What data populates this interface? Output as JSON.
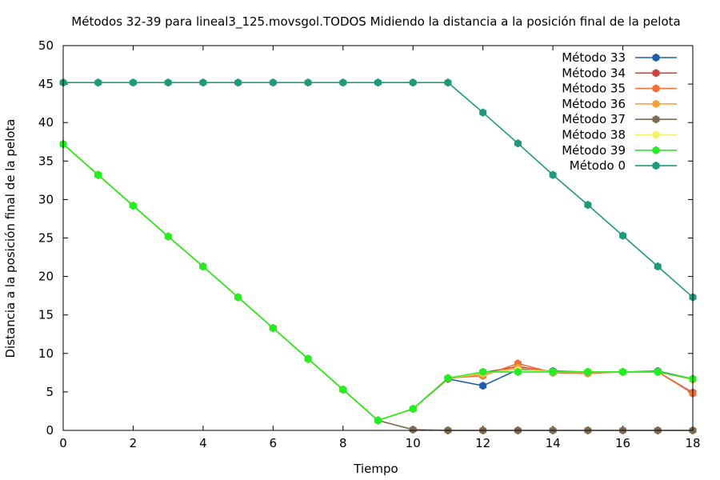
{
  "chart_data": {
    "type": "line",
    "title": "Métodos 32-39 para lineal3_125.movsgol.TODOS Midiendo la distancia a la posición final de la pelota",
    "xlabel": "Tiempo",
    "ylabel": "Distancia a la posición final de la pelota",
    "xlim": [
      0,
      18
    ],
    "ylim": [
      0,
      50
    ],
    "xticks": [
      0,
      2,
      4,
      6,
      8,
      10,
      12,
      14,
      16,
      18
    ],
    "yticks": [
      0,
      5,
      10,
      15,
      20,
      25,
      30,
      35,
      40,
      45,
      50
    ],
    "grid": false,
    "legend_position": "top-right",
    "x": [
      0,
      1,
      2,
      3,
      4,
      5,
      6,
      7,
      8,
      9,
      10,
      11,
      12,
      13,
      14,
      15,
      16,
      17,
      18
    ],
    "series": [
      {
        "name": "Método 33",
        "color": "#1f5fa8",
        "values": [
          37.2,
          33.2,
          29.2,
          25.2,
          21.3,
          17.3,
          13.3,
          9.3,
          5.3,
          1.3,
          2.8,
          6.7,
          5.8,
          7.9,
          7.7,
          7.6,
          7.6,
          7.7,
          6.7
        ]
      },
      {
        "name": "Método 34",
        "color": "#c8463a",
        "values": [
          37.2,
          33.2,
          29.2,
          25.2,
          21.3,
          17.3,
          13.3,
          9.3,
          5.3,
          1.3,
          2.8,
          6.7,
          7.5,
          8.3,
          7.6,
          7.5,
          7.6,
          7.6,
          4.9
        ]
      },
      {
        "name": "Método 35",
        "color": "#f0703a",
        "values": [
          37.2,
          33.2,
          29.2,
          25.2,
          21.3,
          17.3,
          13.3,
          9.3,
          5.3,
          1.3,
          2.8,
          6.8,
          7.1,
          8.7,
          7.5,
          7.4,
          7.6,
          7.6,
          4.8
        ]
      },
      {
        "name": "Método 36",
        "color": "#f8a040",
        "values": [
          37.2,
          33.2,
          29.2,
          25.2,
          21.3,
          17.3,
          13.3,
          9.3,
          5.3,
          1.3,
          2.8,
          6.8,
          7.3,
          8.1,
          7.6,
          7.5,
          7.6,
          7.6,
          6.6
        ]
      },
      {
        "name": "Método 37",
        "color": "#7d6b52",
        "values": [
          37.2,
          33.2,
          29.2,
          25.2,
          21.3,
          17.3,
          13.3,
          9.3,
          5.3,
          1.3,
          0.1,
          0.0,
          0.0,
          0.0,
          0.0,
          0.0,
          0.0,
          0.0,
          0.0
        ]
      },
      {
        "name": "Método 38",
        "color": "#f5f06a",
        "values": [
          37.2,
          33.2,
          29.2,
          25.2,
          21.3,
          17.3,
          13.3,
          9.3,
          5.3,
          1.3,
          2.8,
          6.8,
          7.5,
          7.8,
          7.6,
          7.6,
          7.6,
          7.6,
          6.7
        ]
      },
      {
        "name": "Método 39",
        "color": "#22ee22",
        "values": [
          37.2,
          33.2,
          29.2,
          25.2,
          21.3,
          17.3,
          13.3,
          9.3,
          5.3,
          1.3,
          2.8,
          6.8,
          7.6,
          7.6,
          7.6,
          7.6,
          7.6,
          7.6,
          6.7
        ]
      },
      {
        "name": "Método 0",
        "color": "#1e9a78",
        "values": [
          45.2,
          45.2,
          45.2,
          45.2,
          45.2,
          45.2,
          45.2,
          45.2,
          45.2,
          45.2,
          45.2,
          45.2,
          41.3,
          37.3,
          33.2,
          29.3,
          25.3,
          21.3,
          17.3
        ]
      }
    ]
  }
}
